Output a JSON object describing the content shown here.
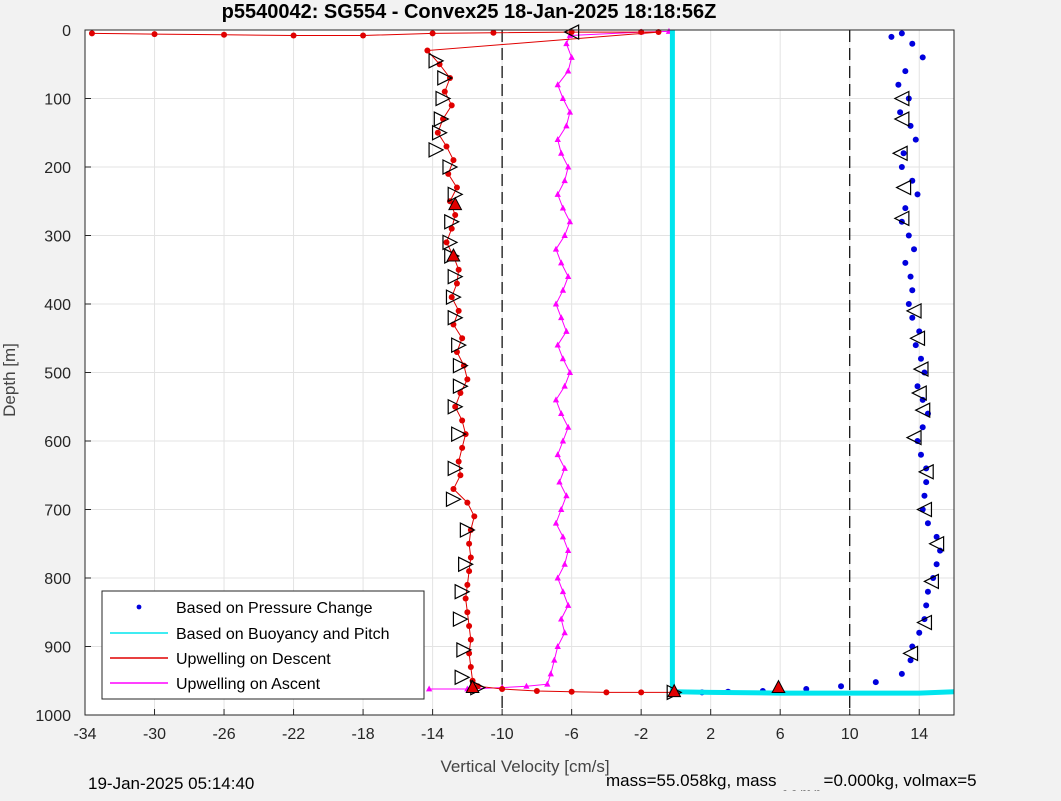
{
  "chart_data": {
    "type": "scatter",
    "title": "p5540042: SG554 - Convex25 18-Jan-2025 18:18:56Z",
    "xlabel": "Vertical Velocity [cm/s]",
    "ylabel": "Depth [m]",
    "xlim": [
      -34,
      16
    ],
    "ylim": [
      0,
      1000
    ],
    "y_reversed": true,
    "grid": true,
    "x_ticks": [
      -34,
      -30,
      -26,
      -22,
      -18,
      -14,
      -10,
      -6,
      -2,
      2,
      6,
      10,
      14
    ],
    "y_ticks": [
      0,
      100,
      200,
      300,
      400,
      500,
      600,
      700,
      800,
      900,
      1000
    ],
    "vlines": [
      -10,
      10
    ],
    "legend_location": "bottom-left",
    "series": [
      {
        "name": "Based on Pressure Change",
        "color": "#0000dd",
        "marker": "dot",
        "points": [
          [
            13.0,
            5
          ],
          [
            12.4,
            10
          ],
          [
            13.6,
            20
          ],
          [
            14.2,
            40
          ],
          [
            13.2,
            60
          ],
          [
            12.8,
            80
          ],
          [
            13.4,
            100
          ],
          [
            12.9,
            120
          ],
          [
            13.5,
            140
          ],
          [
            13.8,
            160
          ],
          [
            13.1,
            180
          ],
          [
            13.0,
            200
          ],
          [
            13.6,
            220
          ],
          [
            13.9,
            240
          ],
          [
            13.2,
            260
          ],
          [
            13.0,
            280
          ],
          [
            13.4,
            300
          ],
          [
            13.7,
            320
          ],
          [
            13.2,
            340
          ],
          [
            13.5,
            360
          ],
          [
            13.6,
            380
          ],
          [
            13.4,
            400
          ],
          [
            13.6,
            420
          ],
          [
            14.0,
            440
          ],
          [
            13.8,
            460
          ],
          [
            14.1,
            480
          ],
          [
            14.3,
            500
          ],
          [
            13.9,
            520
          ],
          [
            14.2,
            540
          ],
          [
            14.5,
            560
          ],
          [
            14.2,
            580
          ],
          [
            13.9,
            600
          ],
          [
            14.1,
            620
          ],
          [
            14.4,
            640
          ],
          [
            14.4,
            660
          ],
          [
            14.3,
            680
          ],
          [
            14.2,
            700
          ],
          [
            14.5,
            720
          ],
          [
            15.0,
            740
          ],
          [
            15.2,
            760
          ],
          [
            15.0,
            780
          ],
          [
            14.8,
            800
          ],
          [
            14.5,
            820
          ],
          [
            14.4,
            840
          ],
          [
            14.3,
            860
          ],
          [
            14.0,
            880
          ],
          [
            13.6,
            900
          ],
          [
            13.5,
            920
          ],
          [
            13.0,
            940
          ],
          [
            11.5,
            952
          ],
          [
            9.5,
            958
          ],
          [
            7.5,
            962
          ],
          [
            5.0,
            965
          ],
          [
            3.0,
            966
          ],
          [
            1.5,
            967
          ],
          [
            0.0,
            967
          ]
        ]
      },
      {
        "name": "Based on Buoyancy and Pitch",
        "color": "#00e5ee",
        "marker": "line",
        "points": [
          [
            -0.2,
            0
          ],
          [
            -0.2,
            10
          ],
          [
            -0.2,
            100
          ],
          [
            -0.2,
            200
          ],
          [
            -0.2,
            300
          ],
          [
            -0.2,
            400
          ],
          [
            -0.2,
            500
          ],
          [
            -0.2,
            600
          ],
          [
            -0.2,
            700
          ],
          [
            -0.2,
            800
          ],
          [
            -0.2,
            900
          ],
          [
            -0.2,
            966
          ],
          [
            2,
            967
          ],
          [
            6,
            968
          ],
          [
            10,
            968
          ],
          [
            14,
            968
          ],
          [
            16,
            966
          ]
        ]
      },
      {
        "name": "Upwelling on Descent",
        "color": "#e00000",
        "marker": "dot",
        "points": [
          [
            -33.6,
            5
          ],
          [
            -30.0,
            6
          ],
          [
            -26.0,
            7
          ],
          [
            -22.0,
            8
          ],
          [
            -18.0,
            8
          ],
          [
            -14.0,
            5
          ],
          [
            -10.5,
            4
          ],
          [
            -6.0,
            3
          ],
          [
            -2.0,
            3
          ],
          [
            -1.0,
            3
          ],
          [
            -14.3,
            30
          ],
          [
            -13.6,
            50
          ],
          [
            -13.0,
            70
          ],
          [
            -13.3,
            90
          ],
          [
            -12.9,
            110
          ],
          [
            -13.4,
            130
          ],
          [
            -13.7,
            150
          ],
          [
            -13.2,
            170
          ],
          [
            -12.8,
            190
          ],
          [
            -13.1,
            210
          ],
          [
            -12.6,
            230
          ],
          [
            -13.0,
            250
          ],
          [
            -12.7,
            270
          ],
          [
            -12.9,
            290
          ],
          [
            -13.2,
            310
          ],
          [
            -12.8,
            330
          ],
          [
            -12.5,
            350
          ],
          [
            -12.6,
            370
          ],
          [
            -12.9,
            390
          ],
          [
            -12.5,
            410
          ],
          [
            -12.8,
            430
          ],
          [
            -12.3,
            450
          ],
          [
            -12.6,
            470
          ],
          [
            -12.2,
            490
          ],
          [
            -12.0,
            510
          ],
          [
            -12.4,
            530
          ],
          [
            -12.7,
            550
          ],
          [
            -12.3,
            570
          ],
          [
            -12.1,
            590
          ],
          [
            -12.3,
            610
          ],
          [
            -12.5,
            630
          ],
          [
            -12.4,
            650
          ],
          [
            -12.8,
            670
          ],
          [
            -12.0,
            690
          ],
          [
            -11.6,
            710
          ],
          [
            -11.8,
            730
          ],
          [
            -11.9,
            750
          ],
          [
            -11.8,
            770
          ],
          [
            -11.9,
            790
          ],
          [
            -12.0,
            810
          ],
          [
            -12.1,
            830
          ],
          [
            -12.0,
            850
          ],
          [
            -11.9,
            870
          ],
          [
            -11.8,
            890
          ],
          [
            -11.9,
            910
          ],
          [
            -11.8,
            930
          ],
          [
            -11.7,
            950
          ],
          [
            -11.4,
            958
          ],
          [
            -10.0,
            962
          ],
          [
            -8.0,
            965
          ],
          [
            -6.0,
            966
          ],
          [
            -4.0,
            967
          ],
          [
            -2.0,
            967
          ],
          [
            -0.2,
            967
          ]
        ]
      },
      {
        "name": "Upwelling on Ascent",
        "color": "#ff00ff",
        "marker": "triangle",
        "points": [
          [
            -14.2,
            962
          ],
          [
            -12.0,
            962
          ],
          [
            -10.0,
            960
          ],
          [
            -8.6,
            958
          ],
          [
            -7.4,
            955
          ],
          [
            -7.2,
            940
          ],
          [
            -7.0,
            920
          ],
          [
            -6.8,
            900
          ],
          [
            -6.4,
            880
          ],
          [
            -6.6,
            860
          ],
          [
            -6.2,
            840
          ],
          [
            -6.5,
            820
          ],
          [
            -6.8,
            800
          ],
          [
            -6.4,
            780
          ],
          [
            -6.2,
            760
          ],
          [
            -6.5,
            740
          ],
          [
            -6.9,
            720
          ],
          [
            -6.6,
            700
          ],
          [
            -6.3,
            680
          ],
          [
            -6.7,
            660
          ],
          [
            -6.4,
            640
          ],
          [
            -6.8,
            620
          ],
          [
            -6.5,
            600
          ],
          [
            -6.2,
            580
          ],
          [
            -6.6,
            560
          ],
          [
            -6.9,
            540
          ],
          [
            -6.4,
            520
          ],
          [
            -6.1,
            500
          ],
          [
            -6.5,
            480
          ],
          [
            -6.8,
            460
          ],
          [
            -6.3,
            440
          ],
          [
            -6.6,
            420
          ],
          [
            -6.9,
            400
          ],
          [
            -6.5,
            380
          ],
          [
            -6.2,
            360
          ],
          [
            -6.6,
            340
          ],
          [
            -6.9,
            320
          ],
          [
            -6.4,
            300
          ],
          [
            -6.1,
            280
          ],
          [
            -6.5,
            260
          ],
          [
            -6.8,
            240
          ],
          [
            -6.4,
            220
          ],
          [
            -6.2,
            200
          ],
          [
            -6.6,
            180
          ],
          [
            -6.8,
            160
          ],
          [
            -6.3,
            140
          ],
          [
            -6.1,
            120
          ],
          [
            -6.5,
            100
          ],
          [
            -6.8,
            80
          ],
          [
            -6.2,
            60
          ],
          [
            -6.0,
            40
          ],
          [
            -6.3,
            20
          ],
          [
            -6.1,
            8
          ],
          [
            -2.0,
            3
          ],
          [
            -0.4,
            2
          ]
        ]
      }
    ],
    "markers": {
      "descent_arrows": [
        [
          -13.8,
          45
        ],
        [
          -13.3,
          70
        ],
        [
          -13.4,
          100
        ],
        [
          -13.5,
          130
        ],
        [
          -13.6,
          150
        ],
        [
          -13.8,
          175
        ],
        [
          -13.0,
          200
        ],
        [
          -12.7,
          240
        ],
        [
          -12.9,
          280
        ],
        [
          -13.0,
          310
        ],
        [
          -12.9,
          330
        ],
        [
          -12.7,
          360
        ],
        [
          -12.8,
          390
        ],
        [
          -12.7,
          420
        ],
        [
          -12.5,
          460
        ],
        [
          -12.4,
          490
        ],
        [
          -12.4,
          520
        ],
        [
          -12.7,
          550
        ],
        [
          -12.5,
          590
        ],
        [
          -12.7,
          640
        ],
        [
          -12.8,
          685
        ],
        [
          -12.0,
          730
        ],
        [
          -12.1,
          780
        ],
        [
          -12.3,
          820
        ],
        [
          -12.4,
          860
        ],
        [
          -12.2,
          905
        ],
        [
          -12.3,
          945
        ],
        [
          -11.4,
          960
        ],
        [
          -0.1,
          967
        ]
      ],
      "descent_red_triangles": [
        [
          -12.7,
          255
        ],
        [
          -12.8,
          330
        ],
        [
          -11.7,
          960
        ],
        [
          5.9,
          960
        ],
        [
          -0.1,
          966
        ]
      ],
      "ascent_arrows": [
        [
          13.0,
          100
        ],
        [
          13.0,
          130
        ],
        [
          12.9,
          180
        ],
        [
          13.1,
          230
        ],
        [
          13.0,
          275
        ],
        [
          13.7,
          410
        ],
        [
          13.9,
          450
        ],
        [
          14.1,
          495
        ],
        [
          14.0,
          530
        ],
        [
          14.2,
          555
        ],
        [
          13.7,
          595
        ],
        [
          14.4,
          645
        ],
        [
          14.3,
          700
        ],
        [
          15.0,
          750
        ],
        [
          14.7,
          805
        ],
        [
          14.3,
          865
        ],
        [
          13.5,
          910
        ],
        [
          -6.0,
          3
        ]
      ]
    }
  },
  "footer": {
    "timestamp": "19-Jan-2025 05:14:40",
    "mass_text": "mass=55.058kg, mass",
    "comp_sub": "comp",
    "comp_text": "=0.000kg, volmax=5"
  }
}
